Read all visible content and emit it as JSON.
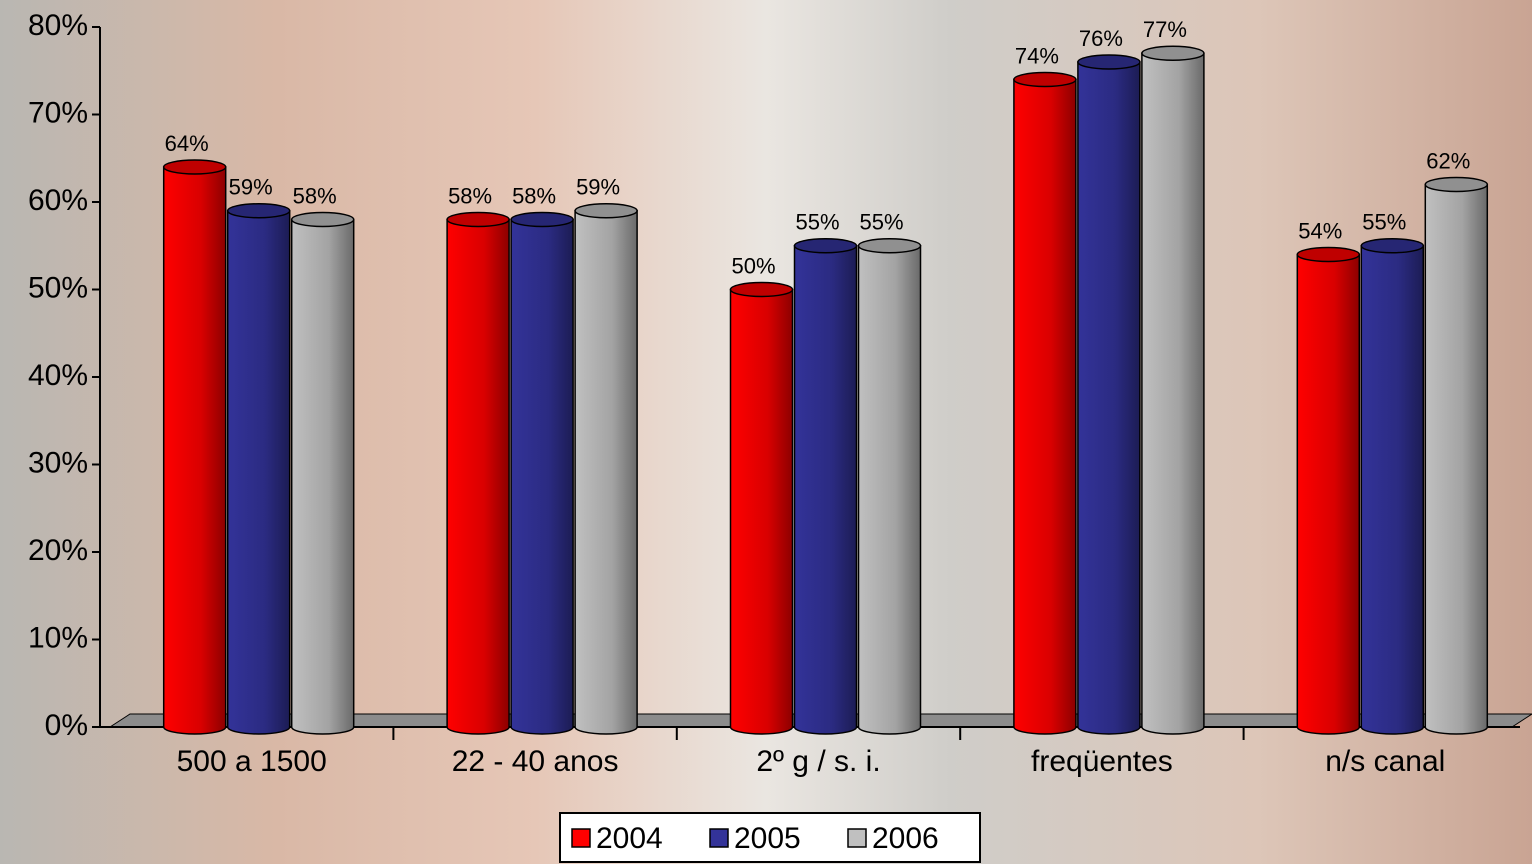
{
  "chart_data": {
    "type": "bar3d",
    "categories": [
      "500 a 1500",
      "22 - 40 anos",
      "2º g / s. i.",
      "freqüentes",
      "n/s canal"
    ],
    "series": [
      {
        "name": "2004",
        "color": "#ff0000",
        "values": [
          64,
          58,
          50,
          74,
          54
        ],
        "value_labels": [
          "64%",
          "58%",
          "50%",
          "74%",
          "54%"
        ]
      },
      {
        "name": "2005",
        "color": "#333399",
        "values": [
          59,
          58,
          55,
          76,
          55
        ],
        "value_labels": [
          "59%",
          "58%",
          "55%",
          "76%",
          "55%"
        ]
      },
      {
        "name": "2006",
        "color": "#c0c0c0",
        "values": [
          58,
          59,
          55,
          77,
          62
        ],
        "value_labels": [
          "58%",
          "59%",
          "55%",
          "77%",
          "62%"
        ]
      }
    ],
    "ylim": [
      0,
      80
    ],
    "yticks": [
      {
        "value": 0,
        "label": "0%"
      },
      {
        "value": 10,
        "label": "10%"
      },
      {
        "value": 20,
        "label": "20%"
      },
      {
        "value": 30,
        "label": "30%"
      },
      {
        "value": 40,
        "label": "40%"
      },
      {
        "value": 50,
        "label": "50%"
      },
      {
        "value": 60,
        "label": "60%"
      },
      {
        "value": 70,
        "label": "70%"
      },
      {
        "value": 80,
        "label": "80%"
      }
    ],
    "legend": "bottom"
  }
}
